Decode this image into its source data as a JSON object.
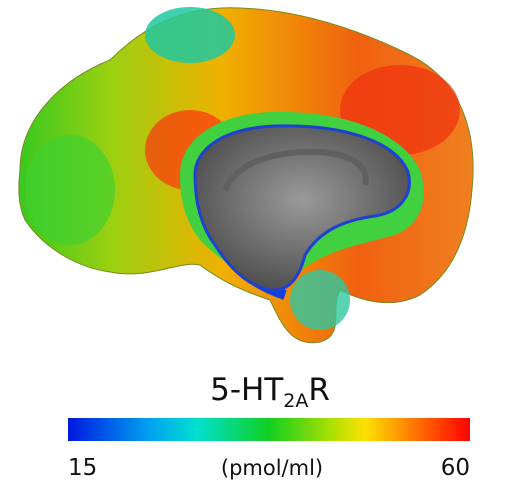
{
  "figure": {
    "title": {
      "main": "5-HT",
      "subscript": "2A",
      "suffix": "R"
    },
    "colorbar": {
      "min": 15,
      "max": 60,
      "unit": "(pmol/ml)"
    }
  }
}
